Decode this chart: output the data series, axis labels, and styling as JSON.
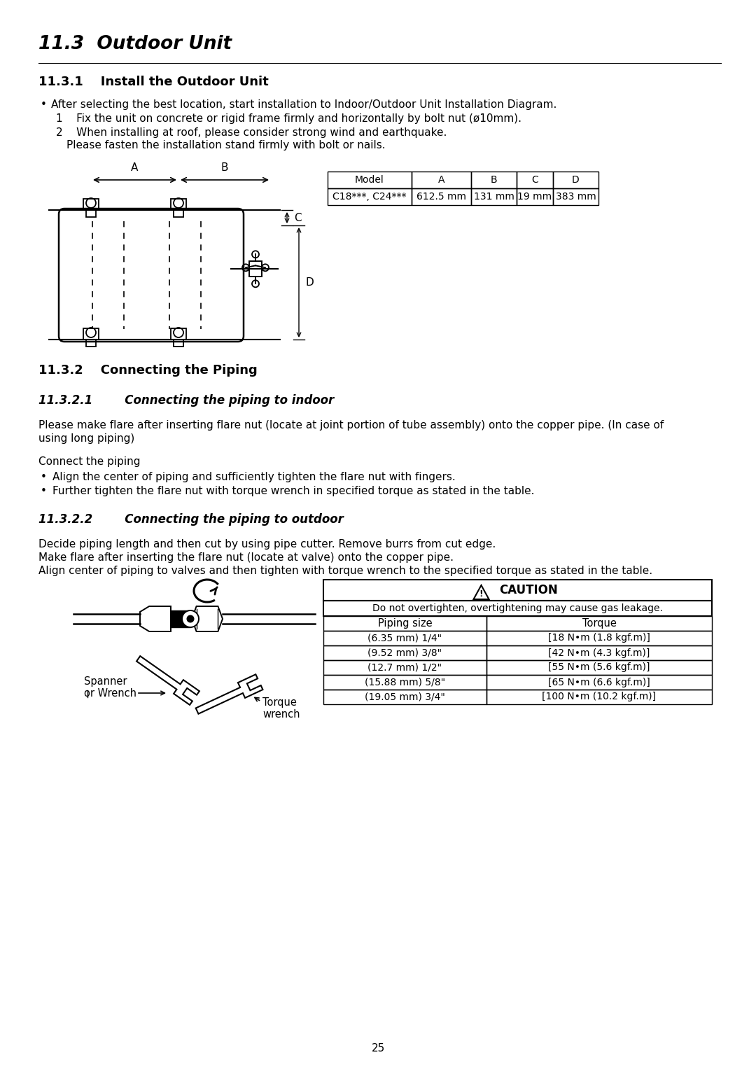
{
  "page_num": "25",
  "bg_color": "#ffffff",
  "section_title": "11.3  Outdoor Unit",
  "subsection1_title": "11.3.1    Install the Outdoor Unit",
  "bullet1": "After selecting the best location, start installation to Indoor/Outdoor Unit Installation Diagram.",
  "item1": "1    Fix the unit on concrete or rigid frame firmly and horizontally by bolt nut (ø10mm).",
  "item2a": "2    When installing at roof, please consider strong wind and earthquake.",
  "item2b": "        Please fasten the installation stand firmly with bolt or nails.",
  "dim_table_headers": [
    "Model",
    "A",
    "B",
    "C",
    "D"
  ],
  "dim_table_row": [
    "C18***, C24***",
    "612.5 mm",
    "131 mm",
    "19 mm",
    "383 mm"
  ],
  "subsection2_title": "11.3.2    Connecting the Piping",
  "subsection2_1_title": "11.3.2.1        Connecting the piping to indoor",
  "para1a": "Please make flare after inserting flare nut (locate at joint portion of tube assembly) onto the copper pipe. (In case of",
  "para1b": "using long piping)",
  "connect_label": "Connect the piping",
  "bullet_align": "Align the center of piping and sufficiently tighten the flare nut with fingers.",
  "bullet_further": "Further tighten the flare nut with torque wrench in specified torque as stated in the table.",
  "subsection2_2_title": "11.3.2.2        Connecting the piping to outdoor",
  "para2a": "Decide piping length and then cut by using pipe cutter. Remove burrs from cut edge.",
  "para2b": "Make flare after inserting the flare nut (locate at valve) onto the copper pipe.",
  "para2c": "Align center of piping to valves and then tighten with torque wrench to the specified torque as stated in the table.",
  "caution_title": "CAUTION",
  "caution_text": "Do not overtighten, overtightening may cause gas leakage.",
  "torque_headers": [
    "Piping size",
    "Torque"
  ],
  "torque_rows": [
    [
      "(6.35 mm) 1/4\"",
      "[18 N•m (1.8 kgf.m)]"
    ],
    [
      "(9.52 mm) 3/8\"",
      "[42 N•m (4.3 kgf.m)]"
    ],
    [
      "(12.7 mm) 1/2\"",
      "[55 N•m (5.6 kgf.m)]"
    ],
    [
      "(15.88 mm) 5/8\"",
      "[65 N•m (6.6 kgf.m)]"
    ],
    [
      "(19.05 mm) 3/4\"",
      "[100 N•m (10.2 kgf.m)]"
    ]
  ],
  "spanner_label": "Spanner\nor Wrench",
  "torque_wrench_label": "Torque\nwrench"
}
